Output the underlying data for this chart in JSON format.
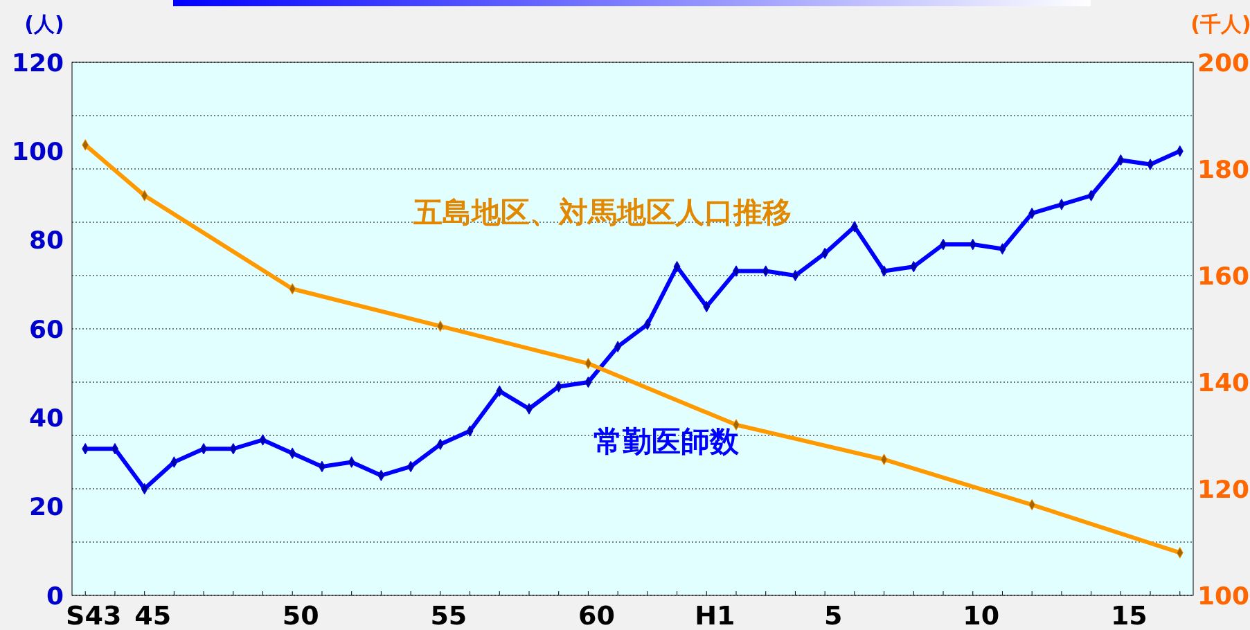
{
  "chart_data": {
    "type": "line",
    "ylabel": "(人)",
    "y2label": "(千人)",
    "categories": [
      "S43",
      null,
      "45",
      null,
      null,
      null,
      null,
      "50",
      null,
      null,
      null,
      null,
      "55",
      null,
      null,
      null,
      null,
      "60",
      null,
      null,
      null,
      "H1",
      null,
      null,
      null,
      "5",
      null,
      null,
      null,
      null,
      "10",
      null,
      null,
      null,
      null,
      "15",
      null,
      null
    ],
    "series": [
      {
        "name": "常勤医師数",
        "color": "#0000ff",
        "values": [
          33,
          33,
          24,
          30,
          33,
          33,
          35,
          32,
          29,
          30,
          27,
          29,
          34,
          37,
          46,
          42,
          47,
          48,
          56,
          61,
          74,
          65,
          73,
          73,
          72,
          77,
          83,
          73,
          74,
          79,
          79,
          78,
          86,
          88,
          90,
          98,
          97,
          100
        ]
      },
      {
        "name": "五島地区、対馬地区人口推移",
        "color": "#ff9900",
        "axis": "y2",
        "values": [
          184.5,
          null,
          175,
          null,
          null,
          null,
          null,
          157.5,
          null,
          null,
          null,
          null,
          150.5,
          null,
          null,
          null,
          null,
          143.5,
          null,
          null,
          null,
          null,
          132,
          null,
          null,
          null,
          null,
          125.5,
          null,
          null,
          null,
          null,
          117,
          null,
          null,
          null,
          null,
          108
        ]
      }
    ],
    "ylim": [
      0,
      120
    ],
    "yticks": [
      0,
      20,
      40,
      60,
      80,
      100,
      120
    ],
    "y2lim": [
      100,
      200
    ],
    "y2ticks": [
      100,
      {
        "value": 110,
        "label": null
      },
      120,
      {
        "value": 130,
        "label": null
      },
      140,
      {
        "value": 150,
        "label": null
      },
      160,
      {
        "value": 170,
        "label": null
      },
      180,
      {
        "value": 190,
        "label": null
      },
      200
    ],
    "grid": "y",
    "marker": "diamond",
    "line_style": "solid"
  }
}
